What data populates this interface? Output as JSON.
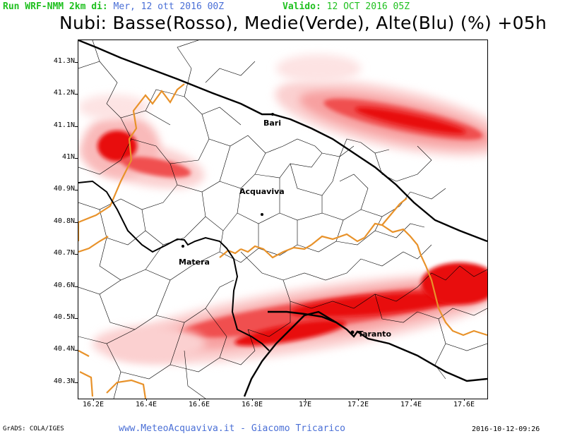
{
  "header": {
    "run_label": "Run WRF-NMM 2km di:",
    "run_value": "Mer, 12 ott 2016 00Z",
    "valid_label": "Valido:",
    "valid_value": "12 OCT 2016 05Z"
  },
  "title": "Nubi: Basse(Rosso), Medie(Verde), Alte(Blu) (%) +05h",
  "axes": {
    "y_ticks": [
      "41.3N",
      "41.2N",
      "41.1N",
      "41N",
      "40.9N",
      "40.8N",
      "40.7N",
      "40.6N",
      "40.5N",
      "40.4N",
      "40.3N"
    ],
    "x_ticks": [
      "16.2E",
      "16.4E",
      "16.6E",
      "16.8E",
      "17E",
      "17.2E",
      "17.4E",
      "17.6E"
    ]
  },
  "cities": {
    "bari": "Bari",
    "acquaviva": "Acquaviva",
    "matera": "Matera",
    "taranto": "Taranto"
  },
  "colors": {
    "cloud_core": "#e81010",
    "cloud_mid": "#f45a5a",
    "cloud_edge": "#fbd0d0",
    "region_border": "#e8922a",
    "coast": "#000000"
  },
  "footer": {
    "left": "GrADS: COLA/IGES",
    "center": "www.MeteoAcquaviva.it - Giacomo Tricarico",
    "right": "2016-10-12-09:26"
  }
}
